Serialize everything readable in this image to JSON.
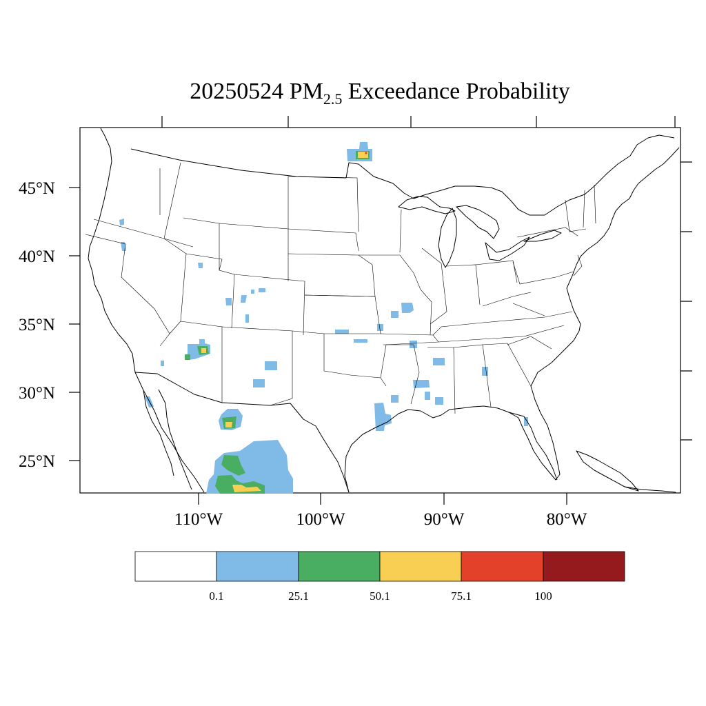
{
  "title": {
    "prefix": "20250524 PM",
    "subscript": "2.5",
    "suffix": " Exceedance Probability"
  },
  "map": {
    "lat_labels": [
      "45°N",
      "40°N",
      "35°N",
      "30°N",
      "25°N"
    ],
    "lon_labels": [
      "110°W",
      "100°W",
      "90°W",
      "80°W"
    ]
  },
  "colorbar": {
    "colors": [
      "#ffffff",
      "#7fbbe6",
      "#4aae62",
      "#f8cf52",
      "#e3412a",
      "#941a1e"
    ],
    "labels": [
      "0.1",
      "25.1",
      "50.1",
      "75.1",
      "100"
    ]
  },
  "probability_areas": [
    {
      "region": "Lake of the Woods, MN",
      "max_category": "75.1"
    },
    {
      "region": "East-central Arizona",
      "max_category": "75.1"
    },
    {
      "region": "Chihuahua, Mexico (north)",
      "max_category": "75.1"
    },
    {
      "region": "Durango, Mexico",
      "max_category": "75.1"
    },
    {
      "region": "Southeast Texas",
      "max_category": "25.1"
    },
    {
      "region": "Scattered Southeast US",
      "max_category": "25.1"
    }
  ]
}
